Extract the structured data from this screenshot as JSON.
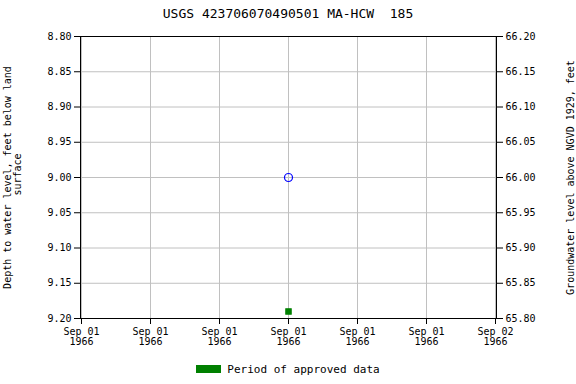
{
  "chart_data": {
    "type": "scatter",
    "title": "USGS 423706070490501 MA-HCW  185",
    "ylabel": "Depth to water level, feet below land\n surface",
    "y2label": "Groundwater level above NGVD 1929, feet",
    "categories": [
      "Sep 01\n1966",
      "Sep 01\n1966",
      "Sep 01\n1966",
      "Sep 01\n1966",
      "Sep 01\n1966",
      "Sep 01\n1966",
      "Sep 02\n1966"
    ],
    "series": [
      {
        "color": "#0000ff",
        "marker": "open_circle",
        "values": [
          null,
          null,
          null,
          9.0,
          null,
          null,
          null
        ]
      },
      {
        "name": "Period of approved data",
        "color": "#008000",
        "marker": "square",
        "values": [
          null,
          null,
          null,
          9.19,
          null,
          null,
          null
        ]
      }
    ],
    "ylim": [
      9.2,
      8.8
    ],
    "yticks": [
      {
        "value": 8.8,
        "label": "8.80"
      },
      8.85,
      {
        "value": 8.9,
        "label": "8.90"
      },
      8.95,
      {
        "value": 9,
        "label": "9.00"
      },
      9.05,
      {
        "value": 9.1,
        "label": "9.10"
      },
      9.15,
      {
        "value": 9.2,
        "label": "9.20"
      }
    ],
    "y2lim": [
      65.8,
      66.2
    ],
    "y2ticks": [
      {
        "value": 65.8,
        "label": "65.80"
      },
      65.85,
      {
        "value": 65.9,
        "label": "65.90"
      },
      65.95,
      {
        "value": 66,
        "label": "66.00"
      },
      66.05,
      {
        "value": 66.1,
        "label": "66.10"
      },
      66.15,
      {
        "value": 66.2,
        "label": "66.20"
      }
    ],
    "grid": true,
    "legend": "bottom"
  }
}
